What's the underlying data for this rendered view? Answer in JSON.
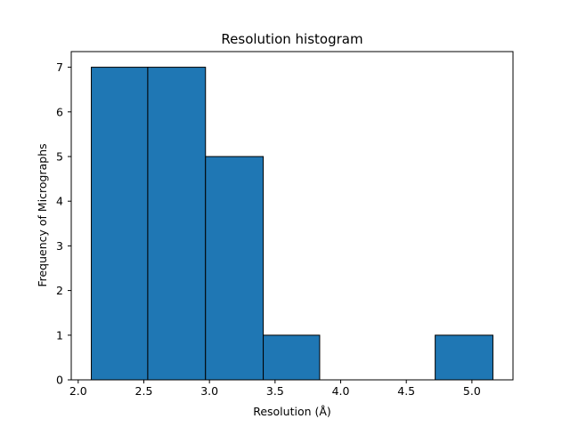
{
  "chart_data": {
    "type": "bar",
    "title": "Resolution histogram",
    "xlabel": "Resolution (Å)",
    "ylabel": "Frequency of Micrographs",
    "bins": [
      {
        "x0": 2.1,
        "x1": 2.53,
        "value": 7
      },
      {
        "x0": 2.53,
        "x1": 2.97,
        "value": 7
      },
      {
        "x0": 2.97,
        "x1": 3.41,
        "value": 5
      },
      {
        "x0": 3.41,
        "x1": 3.84,
        "value": 1
      },
      {
        "x0": 3.84,
        "x1": 4.28,
        "value": 0
      },
      {
        "x0": 4.28,
        "x1": 4.72,
        "value": 0
      },
      {
        "x0": 4.72,
        "x1": 5.16,
        "value": 1
      }
    ],
    "xlim": [
      1.947,
      5.313
    ],
    "ylim": [
      0,
      7.35
    ],
    "xticks": [
      2.0,
      2.5,
      3.0,
      3.5,
      4.0,
      4.5,
      5.0
    ],
    "xtick_labels": [
      "2.0",
      "2.5",
      "3.0",
      "3.5",
      "4.0",
      "4.5",
      "5.0"
    ],
    "yticks": [
      0,
      1,
      2,
      3,
      4,
      5,
      6,
      7
    ],
    "ytick_labels": [
      "0",
      "1",
      "2",
      "3",
      "4",
      "5",
      "6",
      "7"
    ],
    "bar_color": "#1f77b4",
    "edge_color": "#000000",
    "grid": false
  }
}
